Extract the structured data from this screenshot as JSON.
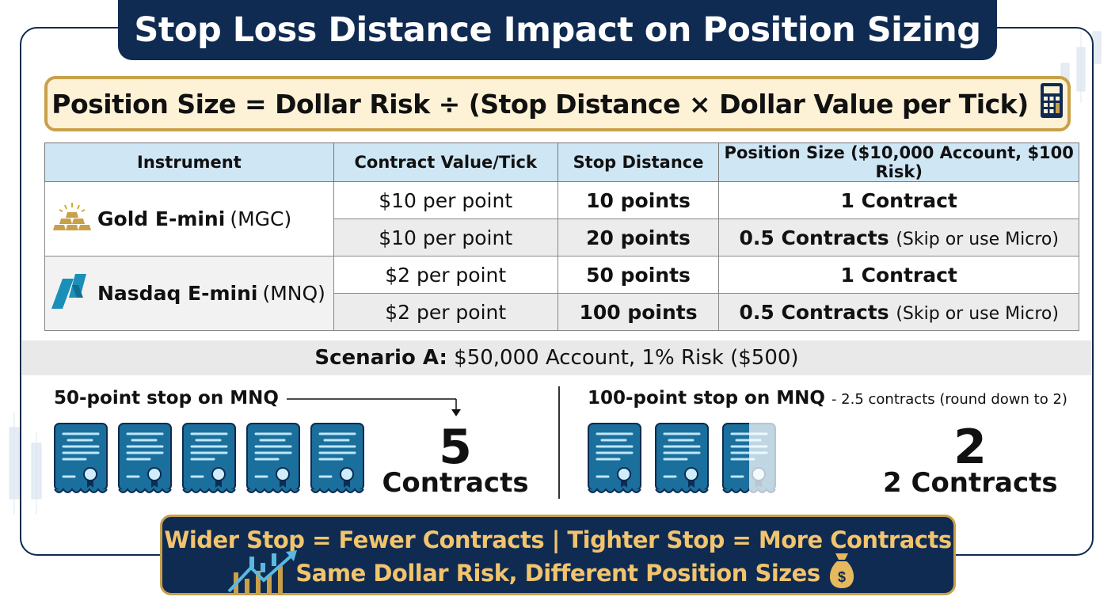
{
  "title": "Stop Loss Distance Impact on Position Sizing",
  "formula": {
    "text": "Position Size = Dollar Risk ÷ (Stop Distance × Dollar Value per Tick)",
    "icon": "calculator-icon"
  },
  "table": {
    "headers": [
      "Instrument",
      "Contract Value/Tick",
      "Stop Distance",
      "Position Size ($10,000 Account, $100 Risk)"
    ],
    "instruments": [
      {
        "name": "Gold E-mini",
        "symbol": "(MGC)",
        "icon": "gold-bars-icon",
        "rows": [
          {
            "value_tick": "$10 per point",
            "stop": "10 points",
            "size": "1 Contract",
            "note": ""
          },
          {
            "value_tick": "$10 per point",
            "stop": "20 points",
            "size": "0.5 Contracts",
            "note": "(Skip or use Micro)"
          }
        ]
      },
      {
        "name": "Nasdaq E-mini",
        "symbol": "(MNQ)",
        "icon": "nasdaq-logo-icon",
        "rows": [
          {
            "value_tick": "$2 per point",
            "stop": "50 points",
            "size": "1 Contract",
            "note": ""
          },
          {
            "value_tick": "$2 per point",
            "stop": "100 points",
            "size": "0.5 Contracts",
            "note": "(Skip or use Micro)"
          }
        ]
      }
    ]
  },
  "scenario": {
    "label": "Scenario A:",
    "text": "$50,000 Account, 1% Risk ($500)"
  },
  "left_case": {
    "label": "50-point stop on MNQ",
    "contracts_count": 5,
    "big_number": "5",
    "big_label": "Contracts"
  },
  "right_case": {
    "label": "100-point stop on MNQ",
    "note": "- 2.5 contracts (round down to 2)",
    "contracts_count": 2.5,
    "big_number": "2",
    "big_label": "2 Contracts"
  },
  "footer": {
    "line1": "Wider Stop = Fewer Contracts | Tighter Stop = More Contracts",
    "line2": "Same Dollar Risk, Different Position Sizes",
    "icons": [
      "chart-growth-icon",
      "money-bag-icon"
    ]
  },
  "colors": {
    "navy": "#0f2b52",
    "gold": "#c9a04a",
    "gold_text": "#f2c46d",
    "header_blue": "#cfe6f5",
    "cert_blue": "#1a6f9c"
  }
}
